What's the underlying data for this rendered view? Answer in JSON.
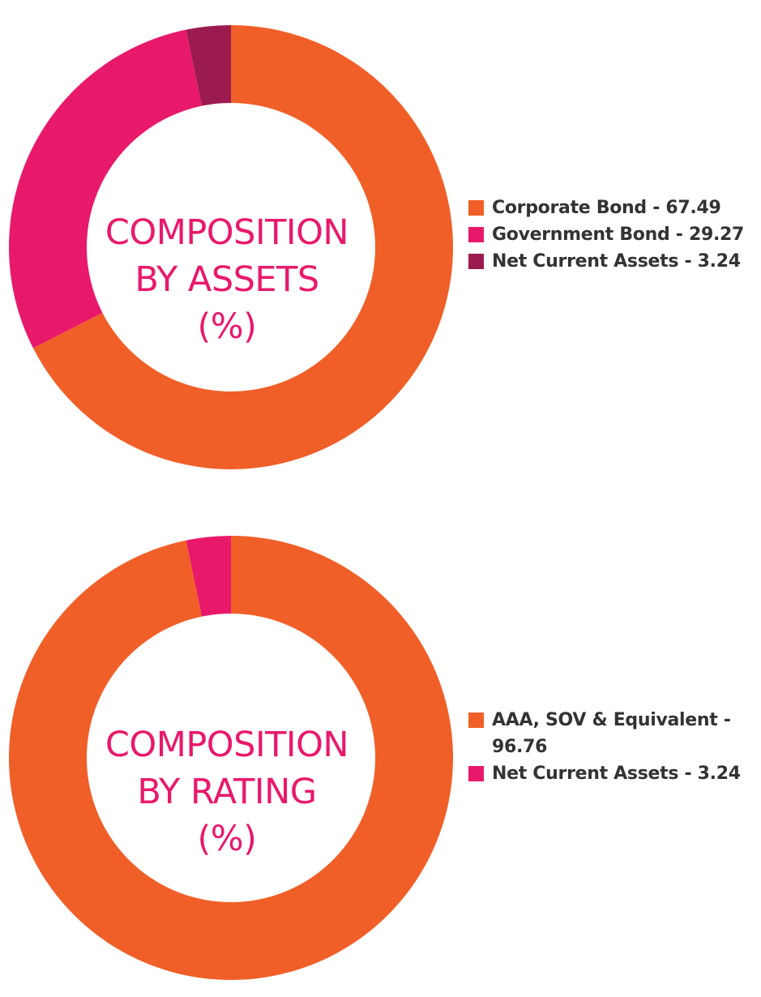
{
  "chart_data": [
    {
      "type": "pie",
      "donut": true,
      "title_lines": [
        "COMPOSITION",
        "BY ASSETS",
        "(%)"
      ],
      "slices": [
        {
          "label": "Corporate Bond",
          "value": 67.49,
          "color": "#f05f28",
          "legend_text": "Corporate Bond - 67.49"
        },
        {
          "label": "Government Bond",
          "value": 29.27,
          "color": "#e8196b",
          "legend_text": "Government Bond - 29.27"
        },
        {
          "label": "Net Current Assets",
          "value": 3.24,
          "color": "#9c1b4f",
          "legend_text": "Net Current Assets - 3.24"
        }
      ],
      "legend_position": "right"
    },
    {
      "type": "pie",
      "donut": true,
      "title_lines": [
        "COMPOSITION",
        "BY RATING",
        "(%)"
      ],
      "slices": [
        {
          "label": "AAA, SOV & Equivalent",
          "value": 96.76,
          "color": "#f05f28",
          "legend_text": [
            "AAA, SOV & Equivalent -",
            "96.76"
          ]
        },
        {
          "label": "Net Current Assets",
          "value": 3.24,
          "color": "#e8196b",
          "legend_text": "Net Current Assets - 3.24"
        }
      ],
      "legend_position": "right"
    }
  ],
  "colors": {
    "title": "#e8196b",
    "legend_text": "#333333"
  }
}
